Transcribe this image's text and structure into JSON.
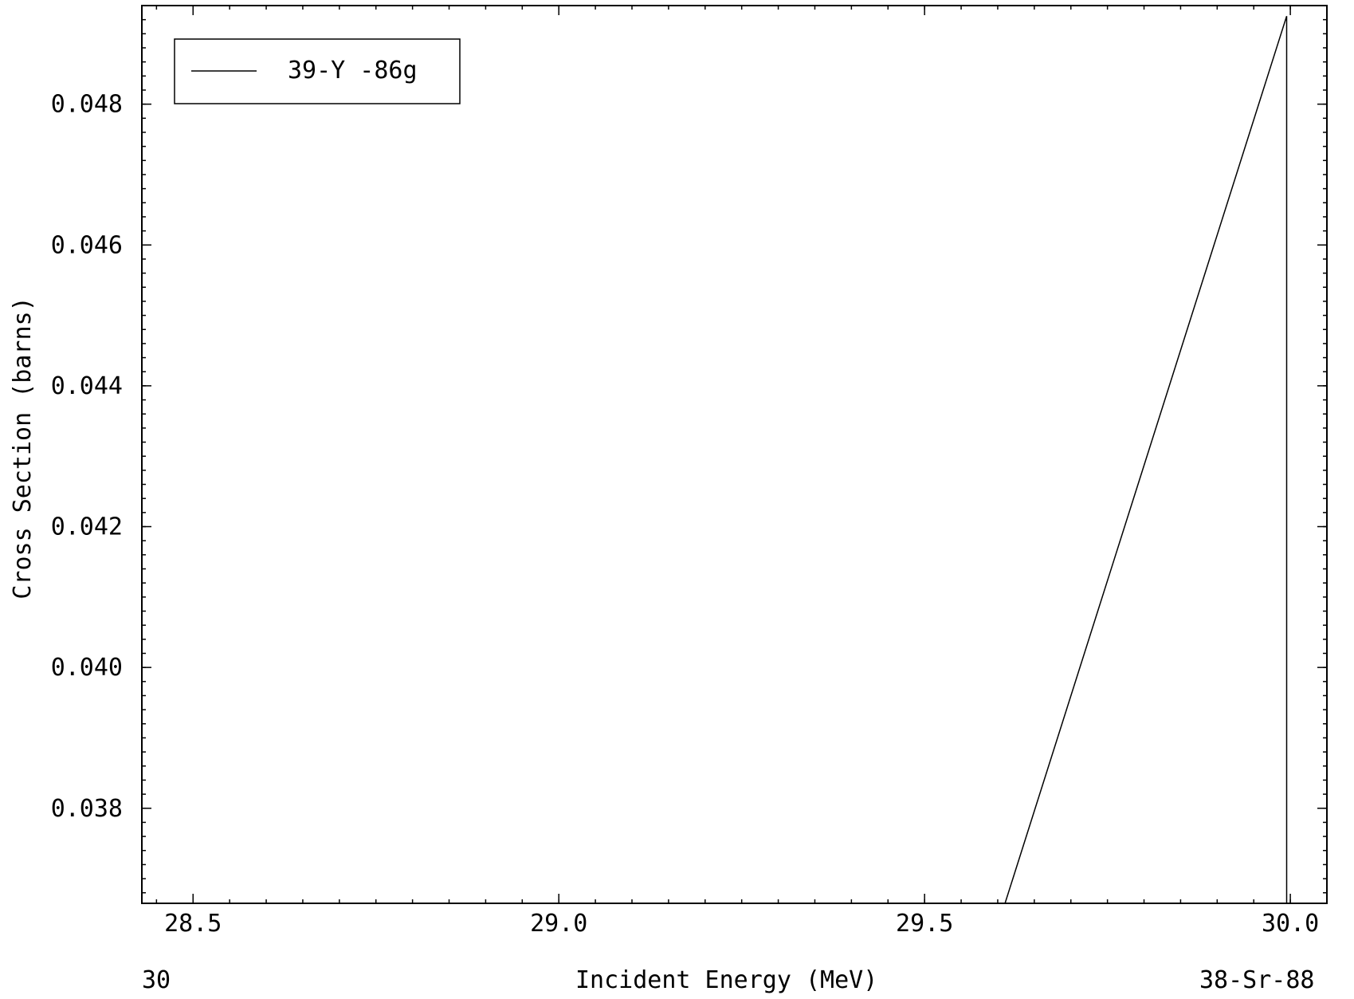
{
  "chart_data": {
    "type": "line",
    "title": "",
    "xlabel": "Incident Energy (MeV)",
    "ylabel": "Cross Section (barns)",
    "xlim": [
      28.43,
      30.05
    ],
    "ylim": [
      0.03665,
      0.0494
    ],
    "x_ticks": [
      28.5,
      29.0,
      29.5,
      30.0
    ],
    "x_tick_labels": [
      "28.5",
      "29.0",
      "29.5",
      "30.0"
    ],
    "y_ticks": [
      0.038,
      0.04,
      0.042,
      0.044,
      0.046,
      0.048
    ],
    "y_tick_labels": [
      "0.038",
      "0.040",
      "0.042",
      "0.044",
      "0.046",
      "0.048"
    ],
    "grid": false,
    "legend_position": "top-left",
    "series": [
      {
        "name": "39-Y -86g",
        "color": "#000000",
        "x": [
          29.61,
          29.995,
          29.995
        ],
        "y": [
          0.03665,
          0.04925,
          0.03665
        ]
      }
    ]
  },
  "footer": {
    "left": "30",
    "center": "Incident Energy (MeV)",
    "right": "38-Sr-88"
  }
}
